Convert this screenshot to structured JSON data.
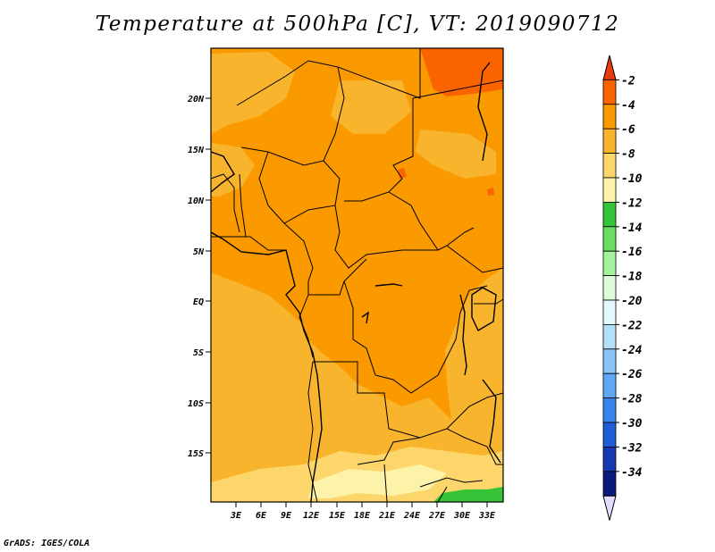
{
  "title": "Temperature at 500hPa [C], VT: 2019090712",
  "credit": "GrADS: IGES/COLA",
  "map": {
    "lat_ticks": [
      "20N",
      "15N",
      "10N",
      "5N",
      "EQ",
      "5S",
      "10S",
      "15S"
    ],
    "lon_ticks": [
      "3E",
      "6E",
      "9E",
      "12E",
      "15E",
      "18E",
      "21E",
      "24E",
      "27E",
      "30E",
      "33E"
    ]
  },
  "colorbar": {
    "labels": [
      "-2",
      "-4",
      "-6",
      "-8",
      "-10",
      "-12",
      "-14",
      "-16",
      "-18",
      "-20",
      "-22",
      "-24",
      "-26",
      "-28",
      "-30",
      "-32",
      "-34"
    ],
    "colors": [
      "#e83b0c",
      "#fa6400",
      "#fa9a00",
      "#f9b42d",
      "#fcd66a",
      "#fdf3a8",
      "#36c337",
      "#69dc62",
      "#a4f39b",
      "#dcfbd6",
      "#e3f8fd",
      "#b4dff9",
      "#8ac4f8",
      "#5ea7f6",
      "#3585ec",
      "#1f5dd7",
      "#1638b0",
      "#0b1a7a",
      "#e4dcff"
    ]
  },
  "colors": {
    "band_m4_m6": "#fa9a00",
    "band_m6_m8": "#f9b42d",
    "band_m8_m10": "#fcd66a",
    "band_m10_m12": "#fdf3a8",
    "band_m12_m14": "#36c337",
    "band_m4_m2": "#fa6400"
  }
}
